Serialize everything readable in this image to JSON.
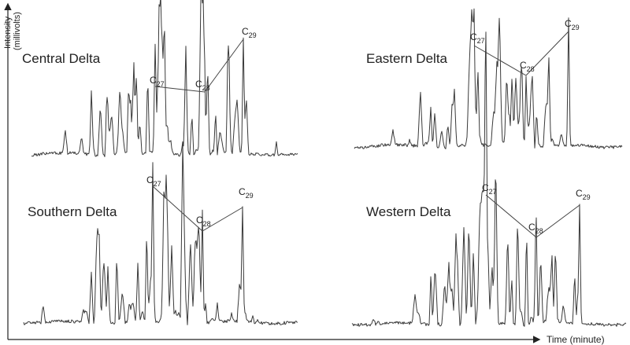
{
  "axes": {
    "y_label_line1": "Intensity",
    "y_label_line2": "(millivolts)",
    "x_label": "Time (minute)"
  },
  "panels": [
    {
      "name": "Central Delta",
      "peaks": [
        {
          "symbol": "C",
          "subscript": "27"
        },
        {
          "symbol": "C",
          "subscript": "28"
        },
        {
          "symbol": "C",
          "subscript": "29"
        }
      ]
    },
    {
      "name": "Eastern Delta",
      "peaks": [
        {
          "symbol": "C",
          "subscript": "27"
        },
        {
          "symbol": "C",
          "subscript": "28"
        },
        {
          "symbol": "C",
          "subscript": "29"
        }
      ]
    },
    {
      "name": "Southern Delta",
      "peaks": [
        {
          "symbol": "C",
          "subscript": "27"
        },
        {
          "symbol": "C",
          "subscript": "28"
        },
        {
          "symbol": "C",
          "subscript": "29"
        }
      ]
    },
    {
      "name": "Western Delta",
      "peaks": [
        {
          "symbol": "C",
          "subscript": "27"
        },
        {
          "symbol": "C",
          "subscript": "28"
        },
        {
          "symbol": "C",
          "subscript": "29"
        }
      ]
    }
  ]
}
